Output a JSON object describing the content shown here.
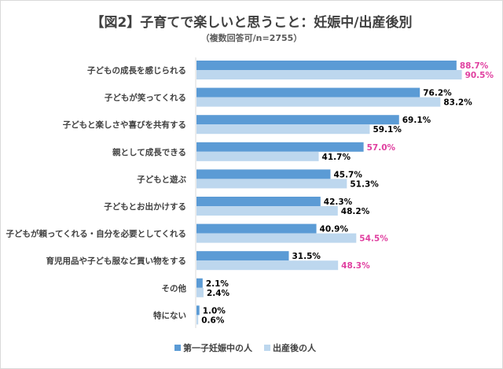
{
  "chart_data": {
    "type": "bar",
    "orientation": "horizontal",
    "title": "【図2】子育てで楽しいと思うこと：妊娠中/出産後別",
    "subtitle": "（複数回答可/n=2755）",
    "categories": [
      "子どもの成長を感じられる",
      "子どもが笑ってくれる",
      "子どもと楽しさや喜びを共有する",
      "親として成長できる",
      "子どもと遊ぶ",
      "子どもとお出かけする",
      "子どもが頼ってくれる・自分を必要としてくれる",
      "育児用品や子ども服など買い物をする",
      "その他",
      "特にない"
    ],
    "series": [
      {
        "name": "第一子妊娠中の人",
        "color": "#5b9bd5",
        "values": [
          88.7,
          76.2,
          69.1,
          57.0,
          45.7,
          42.3,
          40.9,
          31.5,
          2.1,
          1.0
        ],
        "labels": [
          "88.7%",
          "76.2%",
          "69.1%",
          "57.0%",
          "45.7%",
          "42.3%",
          "40.9%",
          "31.5%",
          "2.1%",
          "1.0%"
        ],
        "highlight": [
          true,
          false,
          false,
          true,
          false,
          false,
          false,
          false,
          false,
          false
        ]
      },
      {
        "name": "出産後の人",
        "color": "#bdd7ee",
        "values": [
          90.5,
          83.2,
          59.1,
          41.7,
          51.3,
          48.2,
          54.5,
          48.3,
          2.4,
          0.6
        ],
        "labels": [
          "90.5%",
          "83.2%",
          "59.1%",
          "41.7%",
          "51.3%",
          "48.2%",
          "54.5%",
          "48.3%",
          "2.4%",
          "0.6%"
        ],
        "highlight": [
          true,
          false,
          false,
          false,
          false,
          false,
          true,
          true,
          false,
          false
        ]
      }
    ],
    "xlim": [
      0,
      100
    ],
    "grid": false,
    "legend_position": "bottom-center",
    "label_color": "#000000",
    "highlight_color": "#e040a0"
  }
}
